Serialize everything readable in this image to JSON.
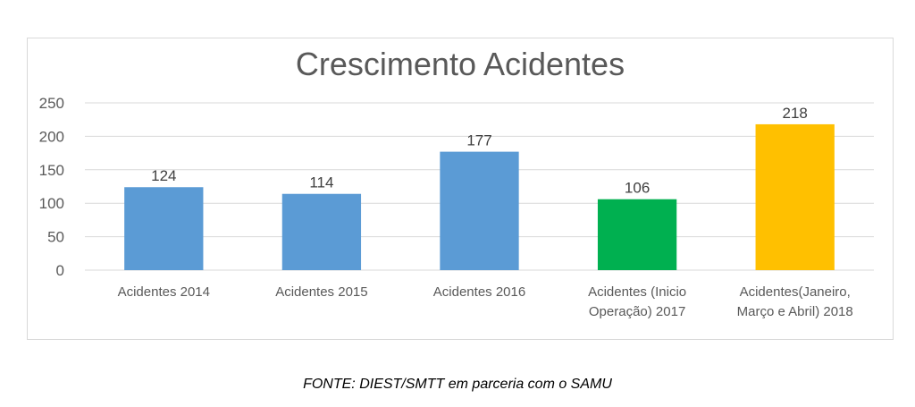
{
  "chart_data": {
    "type": "bar",
    "title": "Crescimento Acidentes",
    "categories": [
      [
        "Acidentes 2014"
      ],
      [
        "Acidentes 2015"
      ],
      [
        "Acidentes 2016"
      ],
      [
        "Acidentes (Inicio",
        "Operação) 2017"
      ],
      [
        "Acidentes(Janeiro,",
        "Março e Abril) 2018"
      ]
    ],
    "values": [
      124,
      114,
      177,
      106,
      218
    ],
    "colors": [
      "#5b9bd5",
      "#5b9bd5",
      "#5b9bd5",
      "#00b050",
      "#ffc000"
    ],
    "yticks": [
      0,
      50,
      100,
      150,
      200,
      250
    ],
    "ylim": [
      0,
      250
    ],
    "grid": true,
    "legend": "none"
  },
  "source": "FONTE: DIEST/SMTT em parceria com o SAMU"
}
